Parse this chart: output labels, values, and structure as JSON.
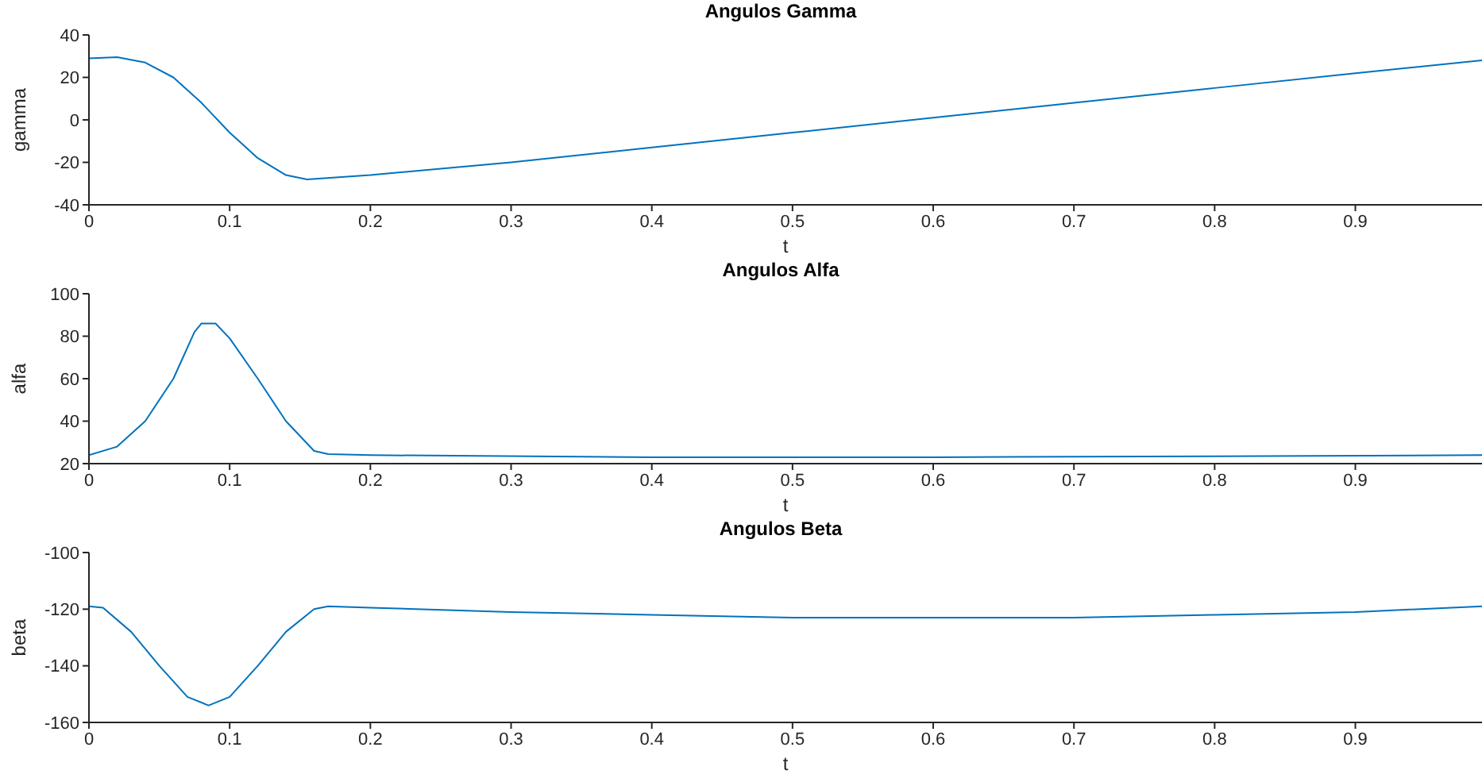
{
  "chart_data": [
    {
      "type": "line",
      "title": "Angulos Gamma",
      "xlabel": "t",
      "ylabel": "gamma",
      "color": "#0072bd",
      "x": [
        0,
        0.02,
        0.04,
        0.06,
        0.08,
        0.1,
        0.12,
        0.14,
        0.155,
        0.2,
        0.3,
        0.4,
        0.5,
        0.6,
        0.7,
        0.8,
        0.9,
        0.99
      ],
      "values": [
        29,
        29.5,
        27,
        20,
        8,
        -6,
        -18,
        -26,
        -28,
        -26,
        -20,
        -13,
        -6,
        1,
        8,
        15,
        22,
        28
      ],
      "xlim": [
        0,
        0.99
      ],
      "xticks": [
        0,
        0.1,
        0.2,
        0.3,
        0.4,
        0.5,
        0.6,
        0.7,
        0.8,
        0.9
      ],
      "ylim": [
        -40,
        40
      ],
      "yticks": [
        -40,
        -20,
        0,
        20,
        40
      ]
    },
    {
      "type": "line",
      "title": "Angulos Alfa",
      "xlabel": "t",
      "ylabel": "alfa",
      "color": "#0072bd",
      "x": [
        0,
        0.02,
        0.04,
        0.06,
        0.075,
        0.08,
        0.09,
        0.1,
        0.12,
        0.14,
        0.16,
        0.17,
        0.2,
        0.4,
        0.6,
        0.8,
        0.99
      ],
      "values": [
        24,
        28,
        40,
        60,
        82,
        86,
        86,
        79,
        60,
        40,
        26,
        24.5,
        24,
        23,
        23,
        23.5,
        24
      ],
      "xlim": [
        0,
        0.99
      ],
      "xticks": [
        0,
        0.1,
        0.2,
        0.3,
        0.4,
        0.5,
        0.6,
        0.7,
        0.8,
        0.9
      ],
      "ylim": [
        20,
        100
      ],
      "yticks": [
        20,
        40,
        60,
        80,
        100
      ]
    },
    {
      "type": "line",
      "title": "Angulos Beta",
      "xlabel": "t",
      "ylabel": "beta",
      "color": "#0072bd",
      "x": [
        0,
        0.01,
        0.03,
        0.05,
        0.07,
        0.085,
        0.1,
        0.12,
        0.14,
        0.16,
        0.17,
        0.2,
        0.3,
        0.4,
        0.5,
        0.6,
        0.7,
        0.8,
        0.9,
        0.99
      ],
      "values": [
        -119,
        -119.5,
        -128,
        -140,
        -151,
        -154,
        -151,
        -140,
        -128,
        -120,
        -119,
        -119.5,
        -121,
        -122,
        -123,
        -123,
        -123,
        -122,
        -121,
        -119
      ],
      "xlim": [
        0,
        0.99
      ],
      "xticks": [
        0,
        0.1,
        0.2,
        0.3,
        0.4,
        0.5,
        0.6,
        0.7,
        0.8,
        0.9
      ],
      "ylim": [
        -160,
        -100
      ],
      "yticks": [
        -160,
        -140,
        -120,
        -100
      ]
    }
  ]
}
